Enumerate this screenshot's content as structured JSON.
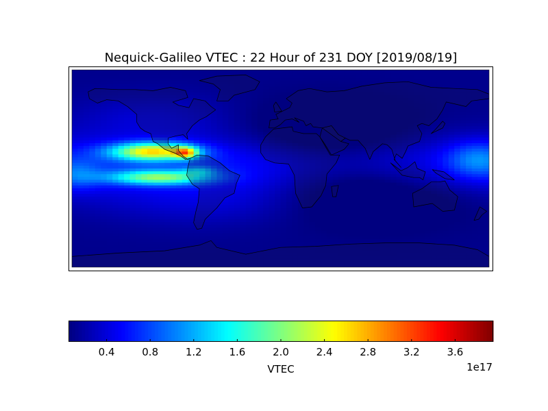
{
  "chart_data": {
    "type": "heatmap",
    "title": "Nequick-Galileo VTEC : 22 Hour of 231 DOY [2019/08/19]",
    "colorbar": {
      "label": "VTEC",
      "multiplier": "1e17",
      "vmin": 0.05,
      "vmax": 3.95,
      "ticks": [
        0.4,
        0.8,
        1.2,
        1.6,
        2.0,
        2.4,
        2.8,
        3.2,
        3.6
      ],
      "tick_labels": [
        "0.4",
        "0.8",
        "1.2",
        "1.6",
        "2.0",
        "2.4",
        "2.8",
        "3.2",
        "3.6"
      ],
      "colormap": "jet"
    },
    "map": {
      "projection": "cylindrical",
      "lon_range": [
        -180,
        180
      ],
      "lat_range": [
        -87.5,
        87.5
      ],
      "background": "world-coastlines"
    },
    "field": {
      "grid": "2.5x5 degree cells",
      "peak": {
        "lon": -80,
        "lat": 15,
        "vtec": 3.9
      },
      "features": [
        {
          "name": "northern-crest-east-pacific",
          "lon_center": -120,
          "lat_center": 15,
          "vtec": 2.4
        },
        {
          "name": "southern-crest-east-pacific",
          "lon_center": -110,
          "lat_center": -10,
          "vtec": 2.0
        },
        {
          "name": "west-pacific-band",
          "lon_center": 165,
          "lat_center": 5,
          "vtec": 1.2
        },
        {
          "name": "night-trough-indian-ocean",
          "lon_center": 60,
          "lat_center": -20,
          "vtec": 0.15
        }
      ]
    }
  }
}
